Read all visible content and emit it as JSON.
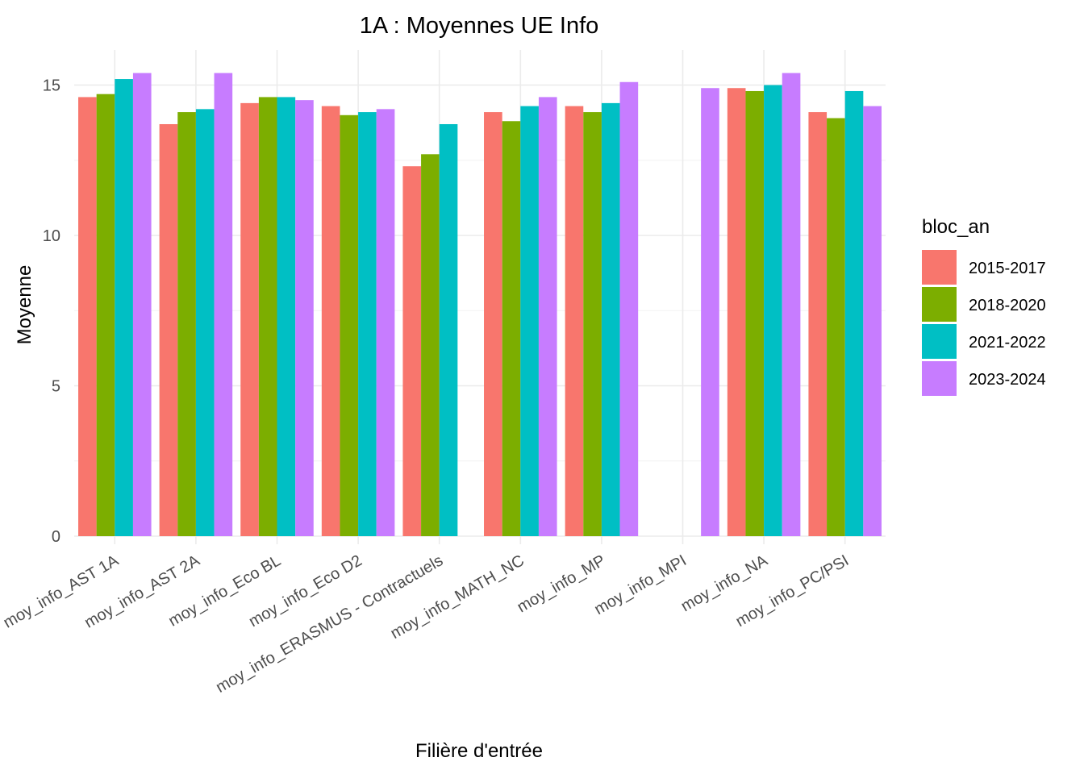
{
  "chart_data": {
    "type": "bar",
    "title": "1A : Moyennes UE Info",
    "xlabel": "Filière d'entrée",
    "ylabel": "Moyenne",
    "ylim": [
      0,
      16
    ],
    "yticks": [
      0,
      5,
      10,
      15
    ],
    "grid": true,
    "legend": {
      "title": "bloc_an",
      "placement": "right"
    },
    "categories": [
      "moy_info_AST 1A",
      "moy_info_AST 2A",
      "moy_info_Eco BL",
      "moy_info_Eco D2",
      "moy_info_ERASMUS - Contractuels",
      "moy_info_MATH_NC",
      "moy_info_MP",
      "moy_info_MPI",
      "moy_info_NA",
      "moy_info_PC/PSI"
    ],
    "series": [
      {
        "name": "2015-2017",
        "color": "#F8766D",
        "values": [
          14.6,
          13.7,
          14.4,
          14.3,
          12.3,
          14.1,
          14.3,
          null,
          14.9,
          14.1
        ]
      },
      {
        "name": "2018-2020",
        "color": "#7CAE00",
        "values": [
          14.7,
          14.1,
          14.6,
          14.0,
          12.7,
          13.8,
          14.1,
          null,
          14.8,
          13.9
        ]
      },
      {
        "name": "2021-2022",
        "color": "#00BFC4",
        "values": [
          15.2,
          14.2,
          14.6,
          14.1,
          13.7,
          14.3,
          14.4,
          null,
          15.0,
          14.8
        ]
      },
      {
        "name": "2023-2024",
        "color": "#C77CFF",
        "values": [
          15.4,
          15.4,
          14.5,
          14.2,
          null,
          14.6,
          15.1,
          14.9,
          15.4,
          14.3
        ]
      }
    ]
  }
}
